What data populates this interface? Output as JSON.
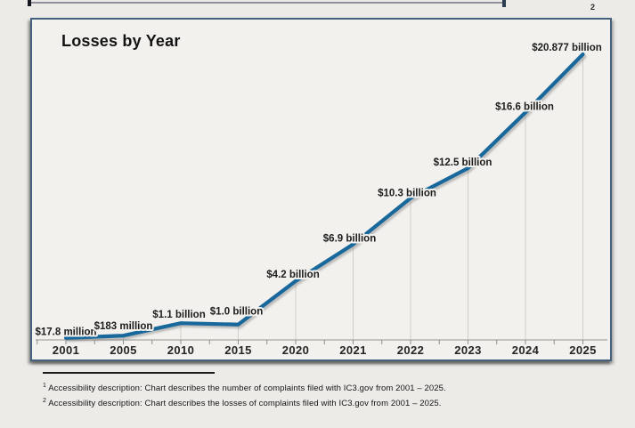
{
  "page": {
    "slide_ref": "2"
  },
  "chart_data": {
    "type": "line",
    "title": "Losses by Year",
    "categories": [
      "2001",
      "2005",
      "2010",
      "2015",
      "2020",
      "2021",
      "2022",
      "2023",
      "2024",
      "2025"
    ],
    "values_billions": [
      0.0178,
      0.183,
      1.1,
      1.0,
      4.2,
      6.9,
      10.3,
      12.5,
      16.6,
      20.877
    ],
    "point_labels": [
      "$17.8 million",
      "$183 million",
      "$1.1 billion",
      "$1.0 billion",
      "$4.2 billion",
      "$6.9 billion",
      "$10.3 billion",
      "$12.5 billion",
      "$16.6 billion",
      "$20.877 billion"
    ],
    "xlabel": "",
    "ylabel": "",
    "ylim": [
      0,
      20.877
    ],
    "legend": "none",
    "grid": "vertical drop lines from each data point to the x-axis",
    "line_color": "#19689c"
  },
  "footnotes": [
    {
      "marker": "1",
      "text": "Accessibility description: Chart describes the number of complaints filed with IC3.gov from 2001 – 2025."
    },
    {
      "marker": "2",
      "text": "Accessibility description: Chart describes the losses of complaints filed with IC3.gov from 2001 – 2025."
    }
  ],
  "colors": {
    "line": "#19689c",
    "line_shadow": "#767676",
    "panel_border": "#44607d",
    "panel_bg": "#f2f1ee",
    "page_bg": "#ecebe8",
    "axis": "#b3b2ae",
    "drop_line": "#cfceca",
    "text": "#1d1d1d"
  }
}
